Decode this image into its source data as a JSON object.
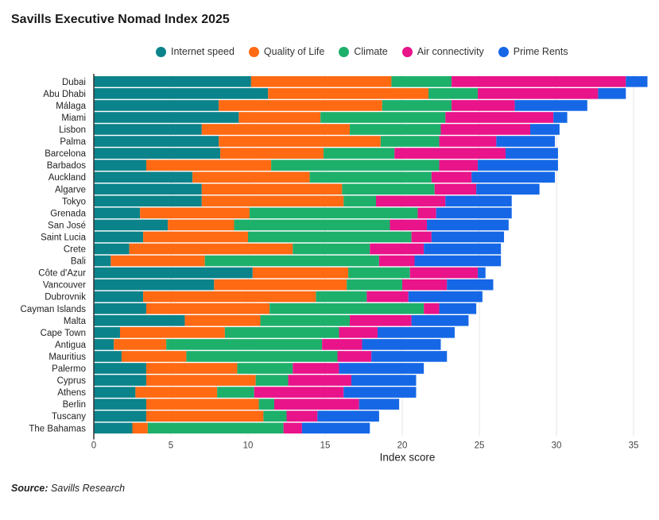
{
  "title": "Savills Executive Nomad Index 2025",
  "source_label": "Source:",
  "source_text": "Savills Research",
  "chart_data": {
    "type": "bar",
    "orientation": "horizontal",
    "stacked": true,
    "title": "Savills Executive Nomad Index 2025",
    "xlabel": "Index score",
    "ylabel": "",
    "xlim": [
      0,
      35
    ],
    "xticks": [
      0,
      5,
      10,
      15,
      20,
      25,
      30,
      35
    ],
    "grid": true,
    "legend_position": "top",
    "categories": [
      "Dubai",
      "Abu Dhabi",
      "Málaga",
      "Miami",
      "Lisbon",
      "Palma",
      "Barcelona",
      "Barbados",
      "Auckland",
      "Algarve",
      "Tokyo",
      "Grenada",
      "San José",
      "Saint Lucia",
      "Crete",
      "Bali",
      "Côte d'Azur",
      "Vancouver",
      "Dubrovnik",
      "Cayman Islands",
      "Malta",
      "Cape Town",
      "Antigua",
      "Mauritius",
      "Palermo",
      "Cyprus",
      "Athens",
      "Berlin",
      "Tuscany",
      "The Bahamas"
    ],
    "series": [
      {
        "name": "Internet speed",
        "color": "#0b838a",
        "values": [
          10.2,
          11.3,
          8.1,
          9.4,
          7.0,
          8.1,
          8.2,
          3.4,
          6.4,
          7.0,
          7.0,
          3.0,
          4.8,
          3.2,
          2.3,
          1.1,
          10.3,
          7.8,
          3.2,
          3.4,
          5.9,
          1.7,
          1.3,
          1.8,
          3.4,
          3.4,
          2.7,
          3.4,
          3.4,
          2.5
        ]
      },
      {
        "name": "Quality of Life",
        "color": "#ff6a13",
        "values": [
          9.1,
          10.4,
          10.6,
          5.3,
          9.6,
          10.5,
          6.7,
          8.1,
          7.6,
          9.1,
          9.2,
          7.1,
          4.3,
          6.8,
          10.6,
          6.1,
          6.2,
          8.6,
          11.2,
          8.0,
          4.9,
          6.8,
          3.4,
          4.2,
          5.9,
          7.1,
          5.3,
          7.3,
          7.6,
          1.0
        ]
      },
      {
        "name": "Climate",
        "color": "#1db06b",
        "values": [
          3.9,
          3.2,
          4.5,
          8.1,
          5.9,
          3.8,
          4.6,
          10.9,
          7.9,
          6.0,
          2.1,
          10.9,
          10.1,
          10.6,
          5.0,
          11.3,
          4.0,
          3.6,
          3.3,
          10.0,
          5.8,
          7.4,
          10.1,
          9.8,
          3.6,
          2.1,
          2.4,
          1.0,
          1.5,
          8.8
        ]
      },
      {
        "name": "Air connectivity",
        "color": "#e9138a",
        "values": [
          11.3,
          7.8,
          4.1,
          7.0,
          5.8,
          3.7,
          7.2,
          2.5,
          2.6,
          2.7,
          4.5,
          1.2,
          2.4,
          1.3,
          3.5,
          2.3,
          4.4,
          2.9,
          2.7,
          1.0,
          4.0,
          2.5,
          2.6,
          2.2,
          3.0,
          4.1,
          5.8,
          5.5,
          2.0,
          1.2
        ]
      },
      {
        "name": "Prime Rents",
        "color": "#1567e6",
        "values": [
          1.4,
          1.8,
          4.7,
          0.9,
          1.9,
          3.8,
          3.4,
          5.2,
          5.4,
          4.1,
          4.3,
          4.9,
          5.3,
          4.7,
          5.0,
          5.6,
          0.5,
          3.0,
          4.8,
          2.4,
          3.7,
          5.0,
          5.1,
          4.9,
          5.5,
          4.2,
          4.7,
          2.6,
          4.0,
          4.4
        ]
      }
    ]
  }
}
